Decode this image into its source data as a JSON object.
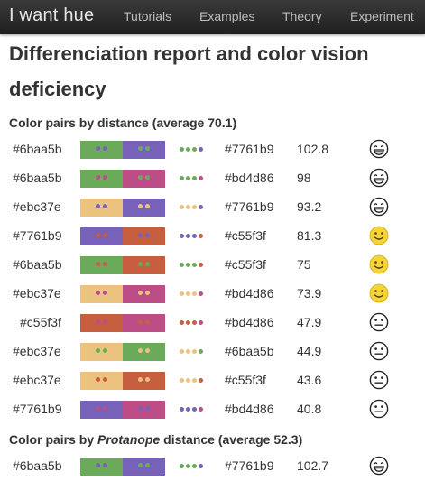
{
  "nav": {
    "brand": "I want hue",
    "links": [
      "Tutorials",
      "Examples",
      "Theory",
      "Experiment"
    ]
  },
  "title": "Differenciation report and color vision deficiency",
  "section1": {
    "heading": "Color pairs by distance (average 70.1)",
    "pairs": [
      {
        "c1": "#6baa5b",
        "c2": "#7761b9",
        "distance": "102.8",
        "face": "grin-face-icon"
      },
      {
        "c1": "#6baa5b",
        "c2": "#bd4d86",
        "distance": "98",
        "face": "grin-face-icon"
      },
      {
        "c1": "#ebc37e",
        "c2": "#7761b9",
        "distance": "93.2",
        "face": "grin-face-icon"
      },
      {
        "c1": "#7761b9",
        "c2": "#c55f3f",
        "distance": "81.3",
        "face": "smile-face-icon"
      },
      {
        "c1": "#6baa5b",
        "c2": "#c55f3f",
        "distance": "75",
        "face": "smile-face-icon"
      },
      {
        "c1": "#ebc37e",
        "c2": "#bd4d86",
        "distance": "73.9",
        "face": "smile-face-icon"
      },
      {
        "c1": "#c55f3f",
        "c2": "#bd4d86",
        "distance": "47.9",
        "face": "neutral-face-icon"
      },
      {
        "c1": "#ebc37e",
        "c2": "#6baa5b",
        "distance": "44.9",
        "face": "neutral-face-icon"
      },
      {
        "c1": "#ebc37e",
        "c2": "#c55f3f",
        "distance": "43.6",
        "face": "neutral-face-icon"
      },
      {
        "c1": "#7761b9",
        "c2": "#bd4d86",
        "distance": "40.8",
        "face": "neutral-face-icon"
      }
    ]
  },
  "section2": {
    "heading_prefix": "Color pairs by ",
    "heading_em": "Protanope",
    "heading_suffix": " distance (average 52.3)",
    "pairs": [
      {
        "c1": "#6baa5b",
        "c2": "#7761b9",
        "distance": "102.7",
        "face": "grin-face-icon"
      }
    ]
  },
  "colors": {
    "navbar_bg": "#222222",
    "face_yellow": "#f5d33a"
  }
}
